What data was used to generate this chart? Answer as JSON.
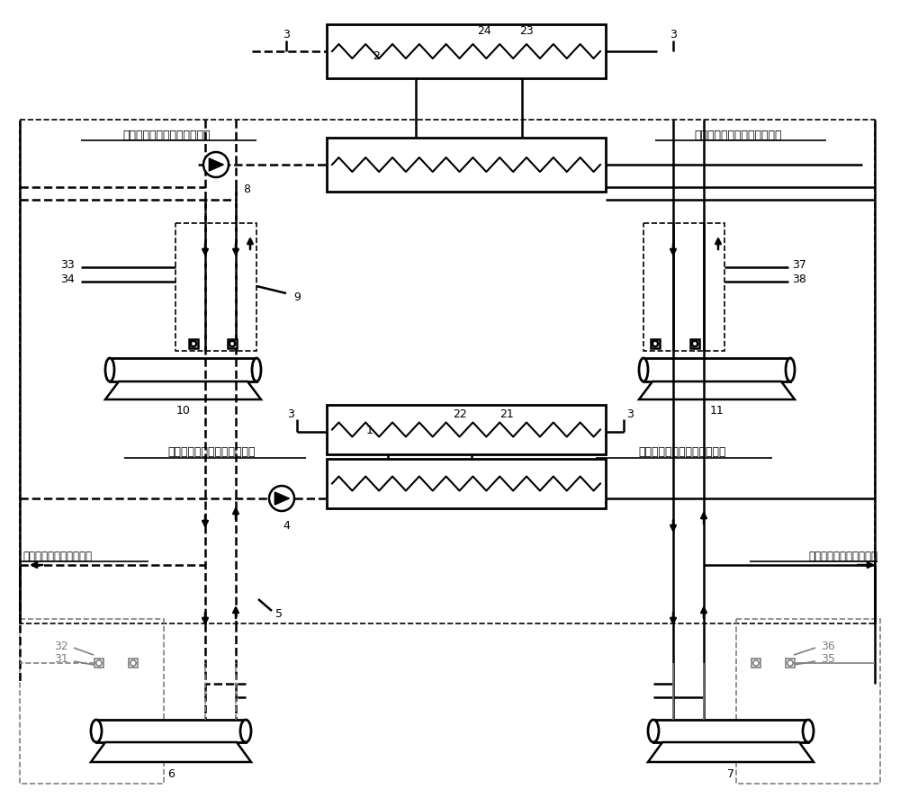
{
  "bg": "#ffffff",
  "text_top_left": "接四管控空调区末端热水回水",
  "text_top_right": "接四管控空调区末端热水供水",
  "text_mid_left": "接四管控空调区末端冷水回水",
  "text_mid_right": "接四管控空调区末端冷水供水",
  "text_left_2pipe": "接两管控空调区末端回水",
  "text_right_2pipe": "接两管控空调区末端供水"
}
